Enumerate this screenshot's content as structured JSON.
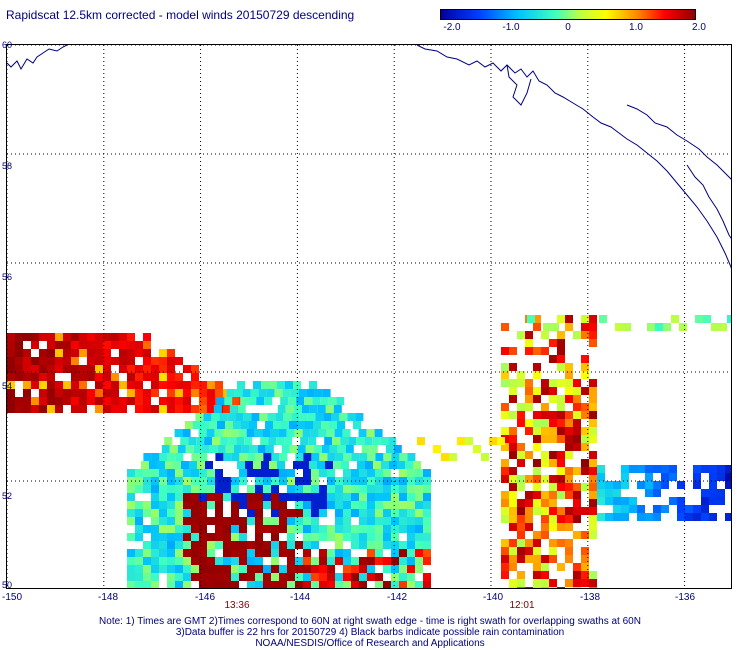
{
  "header": {
    "title": "Rapidscat 12.5km corrected - model winds 20150729 descending"
  },
  "colorbar": {
    "ticks": [
      "-2.0",
      "-1.0",
      "0",
      "1.0",
      "2.0"
    ],
    "min": -2.0,
    "max": 2.0
  },
  "map": {
    "lon_range": [
      -150,
      -135
    ],
    "lat_range": [
      50,
      60
    ],
    "x_ticks": [
      "-150",
      "-148",
      "-146",
      "-144",
      "-142",
      "-140",
      "-138",
      "-136"
    ],
    "y_ticks": [
      "60",
      "58",
      "56",
      "54",
      "52",
      "50"
    ],
    "grid": true,
    "times": [
      "13:36",
      "12:01"
    ]
  },
  "footer": {
    "note1": "Note: 1) Times are GMT 2)Times correspond to 60N at right swath edge - time is right swath for overlapping swaths at 60N",
    "note2": "3)Data buffer is 22 hrs for 20150729 4) Black barbs indicate possible rain contamination",
    "credit": "NOAA/NESDIS/Office of Research and Applications"
  }
}
